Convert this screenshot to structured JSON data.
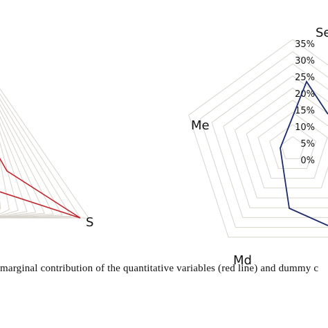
{
  "chart_data": [
    {
      "type": "radar",
      "axes": [
        "S"
      ],
      "rings": 11,
      "series": [
        {
          "color": "#c0272d"
        }
      ]
    },
    {
      "type": "radar",
      "axes": [
        "Se",
        "Md",
        "Me"
      ],
      "tick_labels": [
        "0%",
        "5%",
        "10%",
        "15%",
        "20%",
        "25%",
        "30%",
        "35%"
      ],
      "rmax": 35,
      "ring_color": "#d8d4cc",
      "series": [
        {
          "color": "#1b2a6b"
        }
      ]
    }
  ],
  "caption": "marginal contribution of the quantitative variables (red line) and dummy c"
}
